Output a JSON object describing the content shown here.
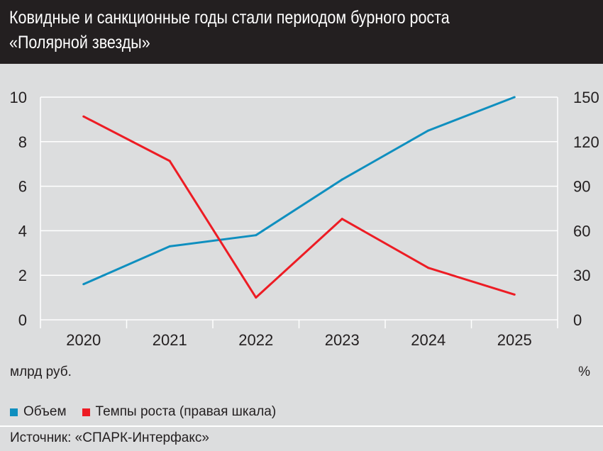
{
  "header": {
    "title_line1": "Ковидные и санкционные годы стали периодом бурного роста",
    "title_line2": "«Полярной звезды»"
  },
  "chart_data": {
    "type": "line",
    "title": "Ковидные и санкционные годы стали периодом бурного роста «Полярной звезды»",
    "categories": [
      "2020",
      "2021",
      "2022",
      "2023",
      "2024",
      "2025"
    ],
    "series": [
      {
        "name": "Объем",
        "axis": "left",
        "color": "#0f8fbf",
        "values": [
          1.6,
          3.3,
          3.8,
          6.3,
          8.5,
          10.0
        ]
      },
      {
        "name": "Темпы роста (правая шкала)",
        "axis": "right",
        "color": "#ed1c24",
        "values": [
          137,
          107,
          15,
          68,
          35,
          17
        ]
      }
    ],
    "ylabel": "млрд руб.",
    "y2label": "%",
    "ylim": [
      0,
      10
    ],
    "y2lim": [
      0,
      150
    ],
    "yticks": [
      "0",
      "2",
      "4",
      "6",
      "8",
      "10"
    ],
    "y2ticks": [
      "0",
      "30",
      "60",
      "90",
      "120",
      "150"
    ],
    "grid": true,
    "legend": "bottom-left"
  },
  "source": "Источник: «СПАРК-Интерфакс»"
}
